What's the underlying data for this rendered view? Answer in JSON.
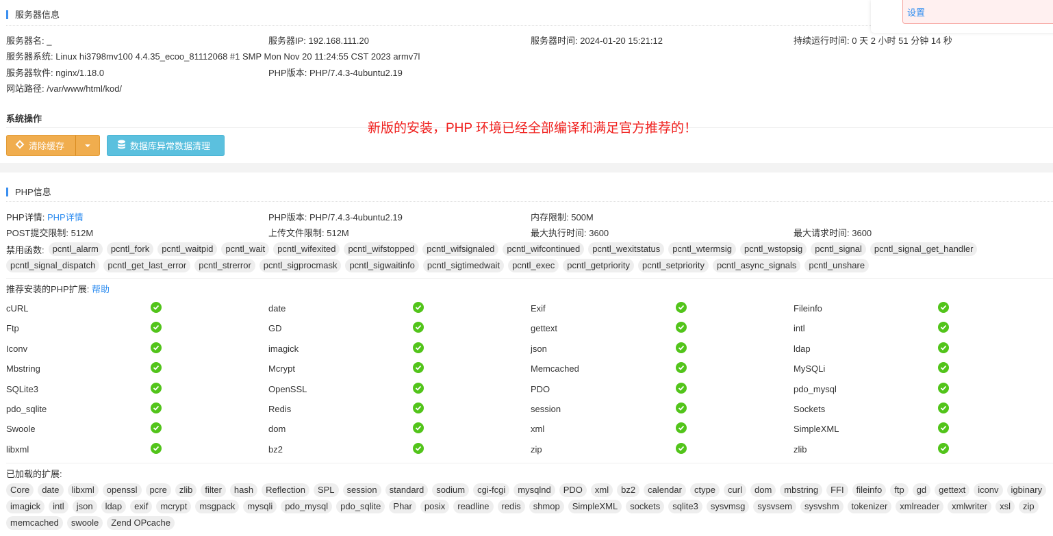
{
  "server": {
    "title": "服务器信息",
    "rows": [
      [
        {
          "k": "服务器名: ",
          "v": "_"
        },
        {
          "k": "服务器IP: ",
          "v": "192.168.111.20"
        },
        {
          "k": "服务器时间: ",
          "v": "2024-01-20 15:21:12"
        },
        {
          "k": "持续运行时间: ",
          "v": "0 天 2 小时 51 分钟 14 秒"
        }
      ],
      [
        {
          "k": "服务器系统: ",
          "v": "Linux hi3798mv100 4.4.35_ecoo_81112068 #1 SMP Mon Nov 20 11:24:55 CST 2023 armv7l"
        }
      ],
      [
        {
          "k": "服务器软件: ",
          "v": "nginx/1.18.0"
        },
        {
          "k": "PHP版本: ",
          "v": "PHP/7.4.3-4ubuntu2.19"
        }
      ],
      [
        {
          "k": "网站路径: ",
          "v": "/var/www/html/kod/"
        }
      ]
    ]
  },
  "ops": {
    "title": "系统操作",
    "clear_cache": "清除缓存",
    "db_clean": "数据库异常数据清理"
  },
  "notice": {
    "link": "设置"
  },
  "annotation": "新版的安装，PHP 环境已经全部编译和满足官方推荐的！",
  "php": {
    "title": "PHP信息",
    "detail_label": "PHP详情: ",
    "detail_link": "PHP详情",
    "version_label": "PHP版本: ",
    "version": "PHP/7.4.3-4ubuntu2.19",
    "memory_label": "内存限制: ",
    "memory": "500M",
    "post_label": "POST提交限制: ",
    "post": "512M",
    "upload_label": "上传文件限制: ",
    "upload": "512M",
    "exec_label": "最大执行时间: ",
    "exec": "3600",
    "req_label": "最大请求时间: ",
    "req": "3600",
    "disabled_label": "禁用函数:",
    "disabled": [
      "pcntl_alarm",
      "pcntl_fork",
      "pcntl_waitpid",
      "pcntl_wait",
      "pcntl_wifexited",
      "pcntl_wifstopped",
      "pcntl_wifsignaled",
      "pcntl_wifcontinued",
      "pcntl_wexitstatus",
      "pcntl_wtermsig",
      "pcntl_wstopsig",
      "pcntl_signal",
      "pcntl_signal_get_handler",
      "pcntl_signal_dispatch",
      "pcntl_get_last_error",
      "pcntl_strerror",
      "pcntl_sigprocmask",
      "pcntl_sigwaitinfo",
      "pcntl_sigtimedwait",
      "pcntl_exec",
      "pcntl_getpriority",
      "pcntl_setpriority",
      "pcntl_async_signals",
      "pcntl_unshare"
    ],
    "recommended_label": "推荐安装的PHP扩展: ",
    "help_link": "帮助",
    "recommended": [
      "cURL",
      "date",
      "Exif",
      "Fileinfo",
      "Ftp",
      "GD",
      "gettext",
      "intl",
      "Iconv",
      "imagick",
      "json",
      "ldap",
      "Mbstring",
      "Mcrypt",
      "Memcached",
      "MySQLi",
      "SQLite3",
      "OpenSSL",
      "PDO",
      "pdo_mysql",
      "pdo_sqlite",
      "Redis",
      "session",
      "Sockets",
      "Swoole",
      "dom",
      "xml",
      "SimpleXML",
      "libxml",
      "bz2",
      "zip",
      "zlib"
    ],
    "loaded_label": "已加载的扩展:",
    "loaded": [
      "Core",
      "date",
      "libxml",
      "openssl",
      "pcre",
      "zlib",
      "filter",
      "hash",
      "Reflection",
      "SPL",
      "session",
      "standard",
      "sodium",
      "cgi-fcgi",
      "mysqlnd",
      "PDO",
      "xml",
      "bz2",
      "calendar",
      "ctype",
      "curl",
      "dom",
      "mbstring",
      "FFI",
      "fileinfo",
      "ftp",
      "gd",
      "gettext",
      "iconv",
      "igbinary",
      "imagick",
      "intl",
      "json",
      "ldap",
      "exif",
      "mcrypt",
      "msgpack",
      "mysqli",
      "pdo_mysql",
      "pdo_sqlite",
      "Phar",
      "posix",
      "readline",
      "redis",
      "shmop",
      "SimpleXML",
      "sockets",
      "sqlite3",
      "sysvmsg",
      "sysvsem",
      "sysvshm",
      "tokenizer",
      "xmlreader",
      "xmlwriter",
      "xsl",
      "zip",
      "memcached",
      "swoole",
      "Zend OPcache"
    ]
  },
  "colors": {
    "accent": "#2d8cf0",
    "warning": "#f0ad4e",
    "info": "#5bc0de",
    "ok": "#52c41a",
    "annotation": "#f0201e"
  }
}
